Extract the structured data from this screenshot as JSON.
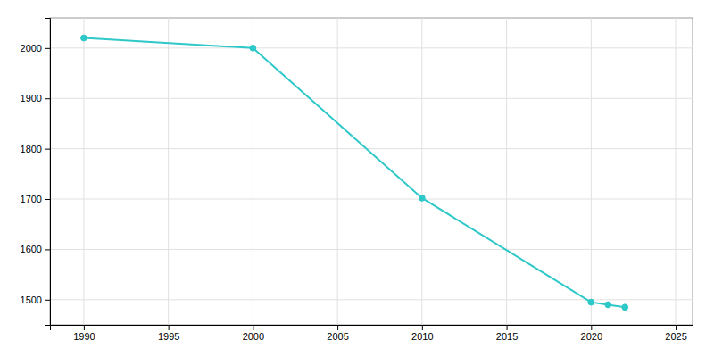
{
  "chart_data": {
    "type": "line",
    "x": [
      1990,
      2000,
      2010,
      2020,
      2021,
      2022
    ],
    "values": [
      2020,
      2000,
      1702,
      1495,
      1490,
      1485
    ],
    "color": "#2ec8c8",
    "marker": "circle",
    "xlim": [
      1988,
      2026
    ],
    "xticks": [
      1990,
      1995,
      2000,
      2005,
      2010,
      2015,
      2020,
      2025
    ],
    "ylim": [
      1450,
      2060
    ],
    "yticks": [
      1500,
      1600,
      1700,
      1800,
      1900,
      2000
    ],
    "grid": true
  }
}
